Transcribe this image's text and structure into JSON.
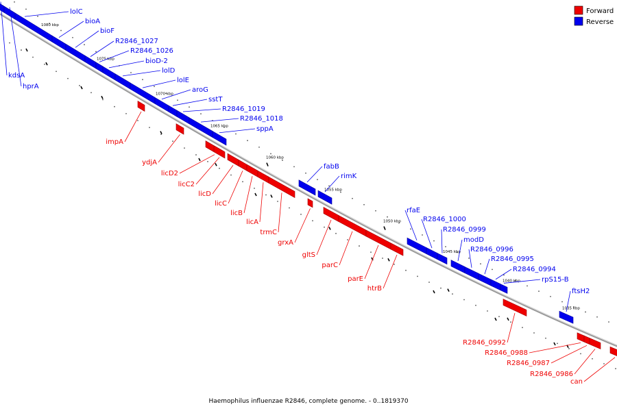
{
  "legend": {
    "forward": {
      "label": "Forward",
      "color": "#ee0000"
    },
    "reverse": {
      "label": "Reverse",
      "color": "#0000ee"
    }
  },
  "caption": "Haemophilus influenzae R2846, complete genome. - 0..1819370",
  "backbone_color": "#999999",
  "ticks": [
    "1080 kbp",
    "1075 kbp",
    "1070 kbp",
    "1065 kbp",
    "1060 kbp",
    "1055 kbp",
    "1050 kbp",
    "1045 kbp",
    "1040 kbp",
    "1035 kbp"
  ],
  "genes": [
    {
      "name": "lolC",
      "strand": "reverse"
    },
    {
      "name": "bioA",
      "strand": "reverse"
    },
    {
      "name": "bioF",
      "strand": "reverse"
    },
    {
      "name": "R2846_1027",
      "strand": "reverse"
    },
    {
      "name": "R2846_1026",
      "strand": "reverse"
    },
    {
      "name": "bioD-2",
      "strand": "reverse"
    },
    {
      "name": "lolD",
      "strand": "reverse"
    },
    {
      "name": "lolE",
      "strand": "reverse"
    },
    {
      "name": "aroG",
      "strand": "reverse"
    },
    {
      "name": "sstT",
      "strand": "reverse"
    },
    {
      "name": "R2846_1019",
      "strand": "reverse"
    },
    {
      "name": "R2846_1018",
      "strand": "reverse"
    },
    {
      "name": "sppA",
      "strand": "reverse"
    },
    {
      "name": "kdsA",
      "strand": "reverse"
    },
    {
      "name": "hprA",
      "strand": "reverse"
    },
    {
      "name": "impA",
      "strand": "forward"
    },
    {
      "name": "ydjA",
      "strand": "forward"
    },
    {
      "name": "licD2",
      "strand": "forward"
    },
    {
      "name": "licC2",
      "strand": "forward"
    },
    {
      "name": "licD",
      "strand": "forward"
    },
    {
      "name": "licC",
      "strand": "forward"
    },
    {
      "name": "licB",
      "strand": "forward"
    },
    {
      "name": "licA",
      "strand": "forward"
    },
    {
      "name": "trmC",
      "strand": "forward"
    },
    {
      "name": "grxA",
      "strand": "forward"
    },
    {
      "name": "fabB",
      "strand": "reverse"
    },
    {
      "name": "rimK",
      "strand": "reverse"
    },
    {
      "name": "gltS",
      "strand": "forward"
    },
    {
      "name": "parC",
      "strand": "forward"
    },
    {
      "name": "parE",
      "strand": "forward"
    },
    {
      "name": "htrB",
      "strand": "forward"
    },
    {
      "name": "rfaE",
      "strand": "reverse"
    },
    {
      "name": "R2846_1000",
      "strand": "reverse"
    },
    {
      "name": "R2846_0999",
      "strand": "reverse"
    },
    {
      "name": "modD",
      "strand": "reverse"
    },
    {
      "name": "R2846_0996",
      "strand": "reverse"
    },
    {
      "name": "R2846_0995",
      "strand": "reverse"
    },
    {
      "name": "R2846_0994",
      "strand": "reverse"
    },
    {
      "name": "rpS15-B",
      "strand": "reverse"
    },
    {
      "name": "ftsH2",
      "strand": "reverse"
    },
    {
      "name": "R2846_0992",
      "strand": "forward"
    },
    {
      "name": "R2846_0988",
      "strand": "forward"
    },
    {
      "name": "R2846_0987",
      "strand": "forward"
    },
    {
      "name": "R2846_0986",
      "strand": "forward"
    },
    {
      "name": "can",
      "strand": "forward"
    }
  ]
}
